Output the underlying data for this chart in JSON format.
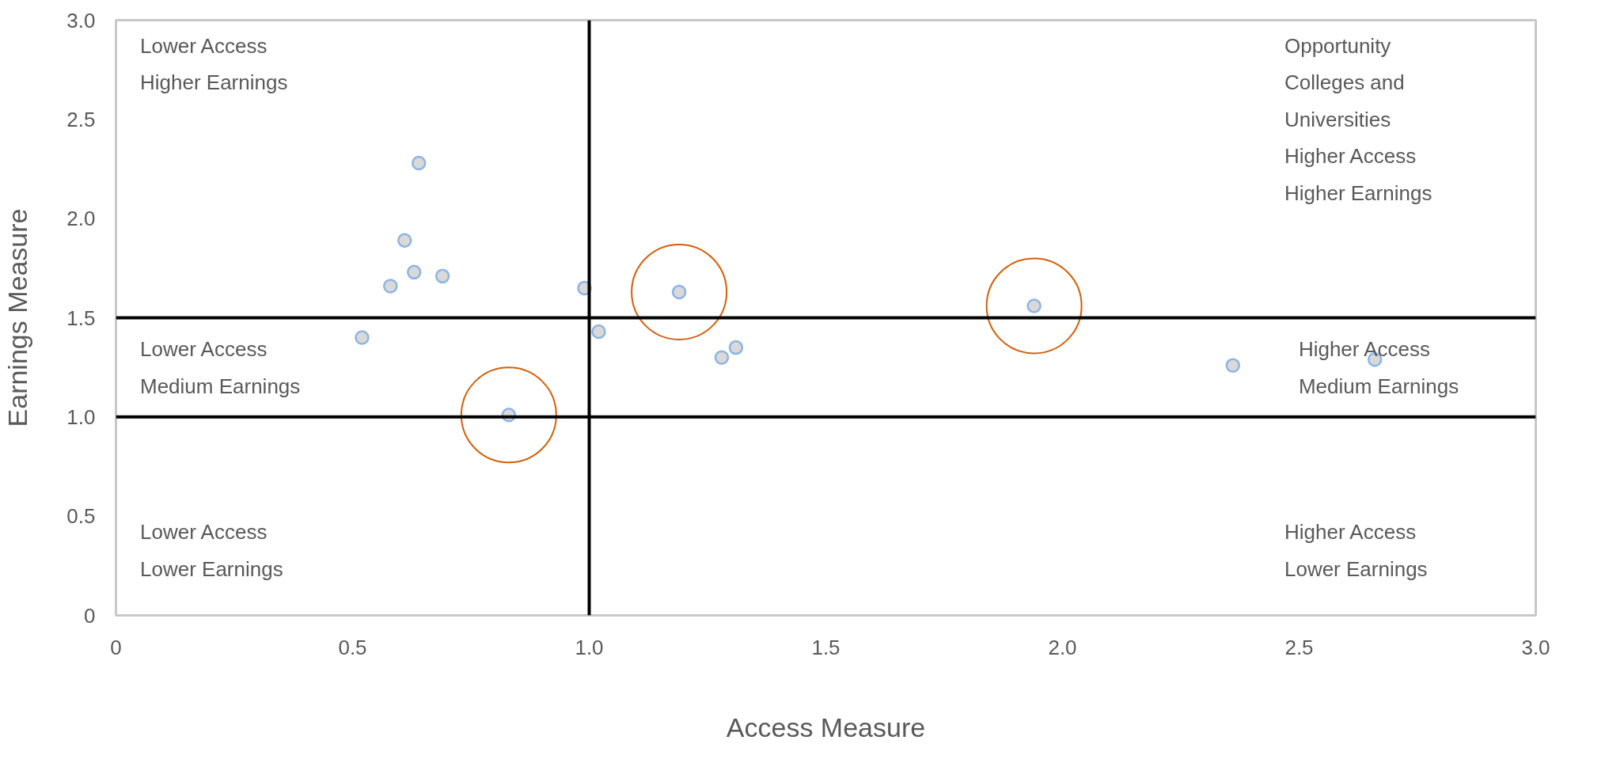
{
  "chart_data": {
    "type": "scatter",
    "xlabel": "Access Measure",
    "ylabel": "Earnings Measure",
    "xlim": [
      0,
      3.0
    ],
    "ylim": [
      0,
      3.0
    ],
    "xticks": [
      0,
      {
        "value": 0.5,
        "label": "0.5"
      },
      {
        "value": 1,
        "label": "1.0"
      },
      {
        "value": 1.5,
        "label": "1.5"
      },
      {
        "value": 2,
        "label": "2.0"
      },
      {
        "value": 2.5,
        "label": "2.5"
      },
      {
        "value": 3,
        "label": "3.0"
      }
    ],
    "yticks": [
      0,
      {
        "value": 0.5,
        "label": "0.5"
      },
      {
        "value": 1,
        "label": "1.0"
      },
      {
        "value": 1.5,
        "label": "1.5"
      },
      {
        "value": 2,
        "label": "2.0"
      },
      {
        "value": 2.5,
        "label": "2.5"
      },
      {
        "value": 3,
        "label": "3.0"
      }
    ],
    "grid": false,
    "marker": "circle",
    "series": [
      {
        "color": "#8eb4e3",
        "x": [
          0.64,
          0.61,
          0.58,
          0.63,
          0.69,
          0.52,
          0.99,
          1.02,
          0.83,
          1.19,
          1.28,
          1.31,
          1.94,
          2.36,
          2.66
        ],
        "values": [
          2.28,
          1.89,
          1.66,
          1.73,
          1.71,
          1.4,
          1.65,
          1.43,
          1.01,
          1.63,
          1.3,
          1.35,
          1.56,
          1.26,
          1.29
        ]
      },
      {
        "color": "#d35f0a",
        "x": [
          0.83,
          1.19,
          1.94
        ],
        "values": [
          1.01,
          1.63,
          1.56
        ]
      }
    ],
    "ref_lines": [
      {
        "axis": "x",
        "value": 1,
        "color": "#000000"
      },
      {
        "axis": "y",
        "value": 1.5,
        "color": "#000000"
      },
      {
        "axis": "y",
        "value": 1.0,
        "color": "#000000"
      }
    ],
    "annotations": [
      "Lower Access\nHigher Earnings",
      "Opportunity\nColleges and\nUniversities\nHigher Access\nHigher Earnings",
      "Lower Access\nMedium Earnings",
      "Higher Access\nMedium Earnings",
      "Lower Access\nLower Earnings",
      "Higher Access\nLower Earnings"
    ]
  }
}
